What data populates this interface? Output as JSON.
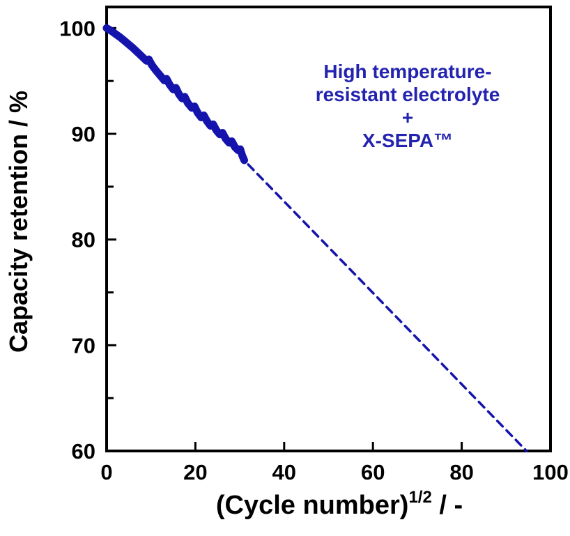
{
  "figure": {
    "background_color": "#ffffff",
    "axis_color": "#000000",
    "tick_label_color": "#000000",
    "line_color": "#1414ac",
    "annotation_color": "#2323b0"
  },
  "chart_data": {
    "type": "line",
    "title": "",
    "xlabel": "(Cycle number)^(1/2) / -",
    "xlabel_parts": {
      "main": "(Cycle number)",
      "sup": "1/2",
      "rest": " / -"
    },
    "ylabel": "Capacity retention / %",
    "xlim": [
      0,
      100
    ],
    "ylim": [
      60,
      102
    ],
    "xticks": [
      0,
      20,
      40,
      60,
      80,
      100
    ],
    "yticks": [
      60,
      70,
      80,
      90,
      100
    ],
    "y_minor_ticks": [
      65,
      75,
      85,
      95
    ],
    "x_minor_ticks": [],
    "grid": false,
    "legend": "none",
    "series": [
      {
        "name": "measured-capacity-retention",
        "style": "solid",
        "stroke_width": 11,
        "color": "#1414ac",
        "points": [
          [
            0,
            100
          ],
          [
            1,
            99.75
          ],
          [
            2,
            99.45
          ],
          [
            3,
            99.15
          ],
          [
            4,
            98.8
          ],
          [
            5,
            98.45
          ],
          [
            6,
            98.1
          ],
          [
            7,
            97.7
          ],
          [
            8,
            97.3
          ],
          [
            9,
            96.9
          ],
          [
            9.5,
            97.05
          ],
          [
            10.2,
            96.5
          ],
          [
            11,
            96.05
          ],
          [
            12,
            95.55
          ],
          [
            13,
            95.05
          ],
          [
            13.5,
            95.2
          ],
          [
            14.2,
            94.65
          ],
          [
            15,
            94.2
          ],
          [
            15.6,
            94.35
          ],
          [
            16.3,
            93.75
          ],
          [
            17,
            93.35
          ],
          [
            17.6,
            93.5
          ],
          [
            18.3,
            92.9
          ],
          [
            19.2,
            92.45
          ],
          [
            19.8,
            92.6
          ],
          [
            20.5,
            92.0
          ],
          [
            21.3,
            91.55
          ],
          [
            21.9,
            91.75
          ],
          [
            22.6,
            91.2
          ],
          [
            23.4,
            90.75
          ],
          [
            24,
            90.9
          ],
          [
            24.7,
            90.35
          ],
          [
            25.5,
            89.95
          ],
          [
            26.1,
            90.1
          ],
          [
            26.8,
            89.55
          ],
          [
            27.6,
            89.15
          ],
          [
            28.2,
            89.3
          ],
          [
            28.9,
            88.75
          ],
          [
            29.6,
            88.45
          ],
          [
            30.1,
            88.55
          ],
          [
            30.6,
            87.9
          ],
          [
            31,
            87.5
          ]
        ]
      },
      {
        "name": "dashed-extrapolation",
        "style": "dashed",
        "stroke_width": 3.5,
        "dash_array": "11 8",
        "color": "#1414ac",
        "points": [
          [
            31.9,
            87.1
          ],
          [
            94.6,
            60
          ]
        ]
      }
    ],
    "annotation": {
      "color": "#2323b0",
      "lines": [
        "High temperature-",
        "resistant electrolyte",
        "+",
        "X-SEPA™"
      ]
    }
  }
}
